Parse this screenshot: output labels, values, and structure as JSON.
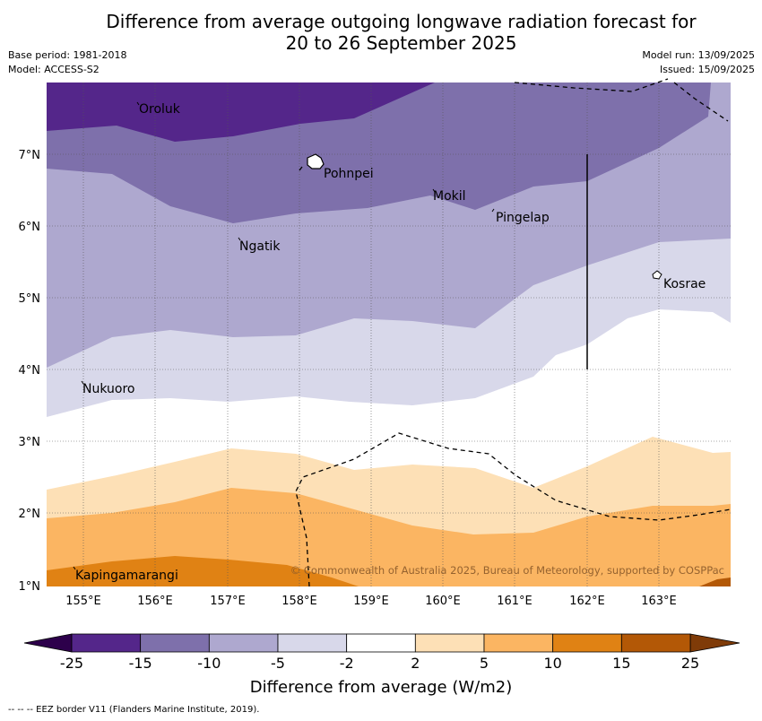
{
  "title_line1": "Difference from average outgoing longwave radiation forecast for",
  "title_line2": "20 to 26 September 2025",
  "base_period": "Base period: 1981-2018",
  "model": "Model: ACCESS-S2",
  "model_run": "Model run: 13/09/2025",
  "issued": "Issued: 15/09/2025",
  "copyright": "© Commonwealth of Australia 2025, Bureau of Meteorology, supported by COSPPac",
  "colorbar_label": "Difference from average (W/m2)",
  "footnote": "--  --  -- EEZ border V11 (Flanders Marine Institute, 2019).",
  "lat_ticks": [
    "7°N",
    "6°N",
    "5°N",
    "4°N",
    "3°N",
    "2°N",
    "1°N"
  ],
  "lon_ticks": [
    "155°E",
    "156°E",
    "157°E",
    "158°E",
    "159°E",
    "160°E",
    "161°E",
    "162°E",
    "163°E"
  ],
  "places": [
    "Oroluk",
    "Pohnpei",
    "Mokil",
    "Pingelap",
    "Ngatik",
    "Kosrae",
    "Nukuoro",
    "Kapingamarangi"
  ],
  "colorbar": {
    "ticks": [
      "-25",
      "-15",
      "-10",
      "-5",
      "-2",
      "2",
      "5",
      "10",
      "15",
      "25"
    ],
    "colors": [
      "#54268a",
      "#7e70ab",
      "#aea8cf",
      "#d8d8ea",
      "#ffffff",
      "#fde0b6",
      "#fbb562",
      "#e08214",
      "#b35806"
    ],
    "under_color": "#2d004b",
    "over_color": "#7f3b08"
  }
}
